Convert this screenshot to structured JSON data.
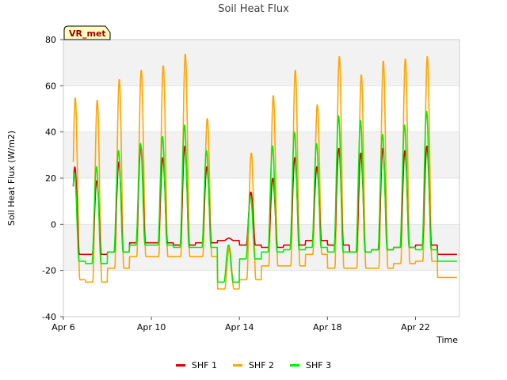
{
  "chart_data": {
    "type": "line",
    "title": "Soil Heat Flux",
    "xlabel": "Time",
    "ylabel": "Soil Heat Flux (W/m2)",
    "site_label": "VR_met",
    "ylim": [
      -40,
      80
    ],
    "yticks": [
      -40,
      -20,
      0,
      20,
      40,
      60,
      80
    ],
    "x_range_days": [
      0,
      18
    ],
    "xticks": [
      {
        "day": 0,
        "label": "Apr 6"
      },
      {
        "day": 4,
        "label": "Apr 10"
      },
      {
        "day": 8,
        "label": "Apr 14"
      },
      {
        "day": 12,
        "label": "Apr 18"
      },
      {
        "day": 16,
        "label": "Apr 22"
      }
    ],
    "shaded_bands": [
      [
        -20,
        0
      ],
      [
        20,
        40
      ],
      [
        60,
        80
      ]
    ],
    "series_start_day": 0.45,
    "series_end_day": 17.9,
    "series": [
      {
        "name": "SHF 1",
        "color": "#dd0000",
        "daily": [
          {
            "min": -13,
            "max": 25
          },
          {
            "min": -13,
            "max": 19
          },
          {
            "min": -12,
            "max": 27
          },
          {
            "min": -8,
            "max": 34
          },
          {
            "min": -8,
            "max": 29
          },
          {
            "min": -9,
            "max": 34
          },
          {
            "min": -8,
            "max": 25
          },
          {
            "min": -7,
            "max": -6
          },
          {
            "min": -9,
            "max": 14
          },
          {
            "min": -10,
            "max": 20
          },
          {
            "min": -9,
            "max": 29
          },
          {
            "min": -7,
            "max": 25
          },
          {
            "min": -9,
            "max": 33
          },
          {
            "min": -12,
            "max": 31
          },
          {
            "min": -11,
            "max": 33
          },
          {
            "min": -10,
            "max": 32
          },
          {
            "min": -9,
            "max": 34
          },
          {
            "min": -13,
            "max": -13
          }
        ]
      },
      {
        "name": "SHF 2",
        "color": "#ffa500",
        "daily": [
          {
            "min": -24,
            "max": 55
          },
          {
            "min": -25,
            "max": 54
          },
          {
            "min": -19,
            "max": 63
          },
          {
            "min": -14,
            "max": 67
          },
          {
            "min": -14,
            "max": 69
          },
          {
            "min": -14,
            "max": 74
          },
          {
            "min": -14,
            "max": 46
          },
          {
            "min": -28,
            "max": -10
          },
          {
            "min": -24,
            "max": 31
          },
          {
            "min": -18,
            "max": 56
          },
          {
            "min": -18,
            "max": 67
          },
          {
            "min": -13,
            "max": 52
          },
          {
            "min": -19,
            "max": 73
          },
          {
            "min": -19,
            "max": 65
          },
          {
            "min": -19,
            "max": 71
          },
          {
            "min": -17,
            "max": 72
          },
          {
            "min": -16,
            "max": 73
          },
          {
            "min": -23,
            "max": -23
          }
        ]
      },
      {
        "name": "SHF 3",
        "color": "#00ee00",
        "daily": [
          {
            "min": -16,
            "max": 22
          },
          {
            "min": -17,
            "max": 25
          },
          {
            "min": -12,
            "max": 32
          },
          {
            "min": -9,
            "max": 35
          },
          {
            "min": -9,
            "max": 38
          },
          {
            "min": -10,
            "max": 43
          },
          {
            "min": -10,
            "max": 32
          },
          {
            "min": -25,
            "max": -9
          },
          {
            "min": -15,
            "max": 12
          },
          {
            "min": -12,
            "max": 34
          },
          {
            "min": -11,
            "max": 40
          },
          {
            "min": -10,
            "max": 35
          },
          {
            "min": -12,
            "max": 47
          },
          {
            "min": -12,
            "max": 45
          },
          {
            "min": -11,
            "max": 39
          },
          {
            "min": -10,
            "max": 43
          },
          {
            "min": -11,
            "max": 49
          },
          {
            "min": -16,
            "max": -16
          }
        ]
      }
    ]
  }
}
